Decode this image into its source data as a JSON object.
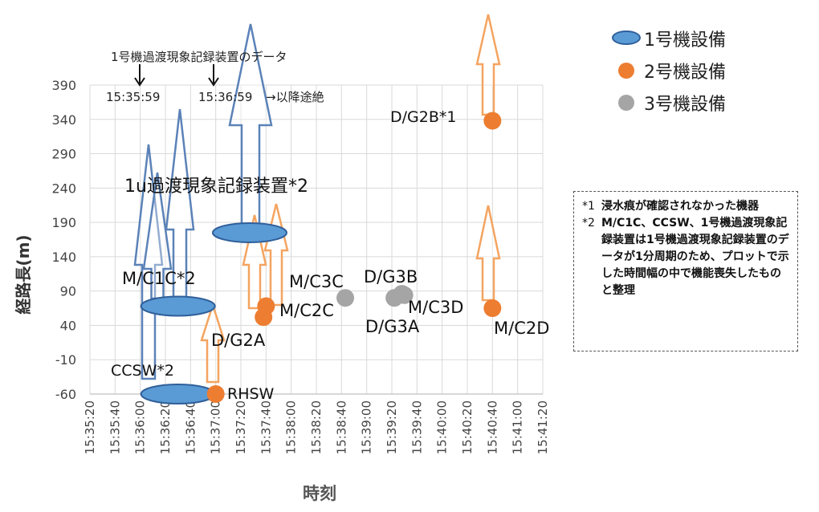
{
  "chart_data": {
    "type": "scatter",
    "xlabel": "時刻",
    "ylabel": "経路長(m)",
    "x_ticks": [
      "15:35:20",
      "15:35:40",
      "15:36:00",
      "15:36:20",
      "15:36:40",
      "15:37:00",
      "15:37:20",
      "15:37:40",
      "15:38:00",
      "15:38:20",
      "15:38:40",
      "15:39:00",
      "15:39:20",
      "15:39:40",
      "15:40:00",
      "15:40:20",
      "15:40:40",
      "15:41:00",
      "15:41:20"
    ],
    "y_ticks": [
      390,
      340,
      290,
      240,
      190,
      140,
      90,
      40,
      -10,
      -60
    ],
    "xlim": [
      "15:35:20",
      "15:41:20"
    ],
    "ylim": [
      -60,
      390
    ],
    "grid": true,
    "legend_position": "top-right",
    "series": [
      {
        "name": "1号機設備",
        "color": "#5b9bd5",
        "marker": "ellipse",
        "points": [
          {
            "label": "1u過渡現象記録装置*2",
            "x": "15:37:27",
            "y": 175
          },
          {
            "label": "M/C1C*2",
            "x": "15:36:30",
            "y": 68
          },
          {
            "label": "CCSW*2",
            "x": "15:36:30",
            "y": -60
          }
        ]
      },
      {
        "name": "2号機設備",
        "color": "#ed7d31",
        "marker": "circle",
        "points": [
          {
            "label": "RHSW",
            "x": "15:37:00",
            "y": -60
          },
          {
            "label": "D/G2A",
            "x": "15:37:38",
            "y": 52
          },
          {
            "label": "M/C2C",
            "x": "15:37:40",
            "y": 68
          },
          {
            "label": "D/G2B*1",
            "x": "15:40:40",
            "y": 338
          },
          {
            "label": "M/C2D",
            "x": "15:40:40",
            "y": 65
          }
        ]
      },
      {
        "name": "3号機設備",
        "color": "#a5a5a5",
        "marker": "circle",
        "points": [
          {
            "label": "M/C3C",
            "x": "15:38:43",
            "y": 80
          },
          {
            "label": "D/G3A",
            "x": "15:39:22",
            "y": 80
          },
          {
            "label": "D/G3B",
            "x": "15:39:28",
            "y": 86
          },
          {
            "label": "M/C3D",
            "x": "15:39:30",
            "y": 84
          }
        ]
      }
    ],
    "annotations": {
      "record_title": "1号機過渡現象記録装置のデータ",
      "time1": "15:35:59",
      "time2": "15:36:59",
      "time2_suffix": "→以降途絶"
    }
  },
  "legend": [
    {
      "label": "1号機設備",
      "color": "#5b9bd5",
      "shape": "ellipse"
    },
    {
      "label": "2号機設備",
      "color": "#ed7d31",
      "shape": "circle"
    },
    {
      "label": "3号機設備",
      "color": "#a5a5a5",
      "shape": "circle"
    }
  ],
  "notes": [
    {
      "mark": "*1",
      "text": "浸水痕が確認されなかった機器"
    },
    {
      "mark": "*2",
      "text": "M/C1C、CCSW、1号機過渡現象記録装置は1号機過渡現象記録装置のデータが1分周期のため、プロットで示した時間幅の中で機能喪失したものと整理"
    }
  ]
}
